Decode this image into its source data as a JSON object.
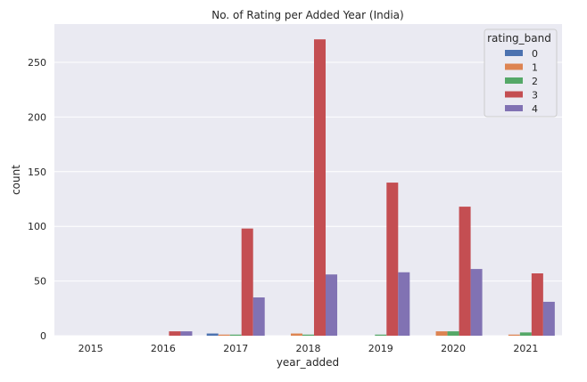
{
  "chart_data": {
    "type": "bar",
    "title": "No. of Rating per Added Year (India)",
    "xlabel": "year_added",
    "ylabel": "count",
    "categories": [
      "2015",
      "2016",
      "2017",
      "2018",
      "2019",
      "2020",
      "2021"
    ],
    "ylim": [
      0,
      285
    ],
    "yticks": [
      "0",
      "50",
      "100",
      "150",
      "200",
      "250"
    ],
    "grid": true,
    "legend_title": "rating_band",
    "legend_position": "top-right",
    "series": [
      {
        "name": "0",
        "color": "#4c72b0",
        "values": [
          0,
          0,
          2,
          0,
          0,
          0,
          0
        ]
      },
      {
        "name": "1",
        "color": "#dd8452",
        "values": [
          0,
          0,
          1,
          2,
          0,
          4,
          1
        ]
      },
      {
        "name": "2",
        "color": "#55a868",
        "values": [
          0,
          0,
          1,
          1,
          1,
          4,
          3
        ]
      },
      {
        "name": "3",
        "color": "#c44e52",
        "values": [
          0,
          4,
          98,
          271,
          140,
          118,
          57
        ]
      },
      {
        "name": "4",
        "color": "#8172b3",
        "values": [
          0,
          4,
          35,
          56,
          58,
          61,
          31
        ]
      }
    ]
  }
}
